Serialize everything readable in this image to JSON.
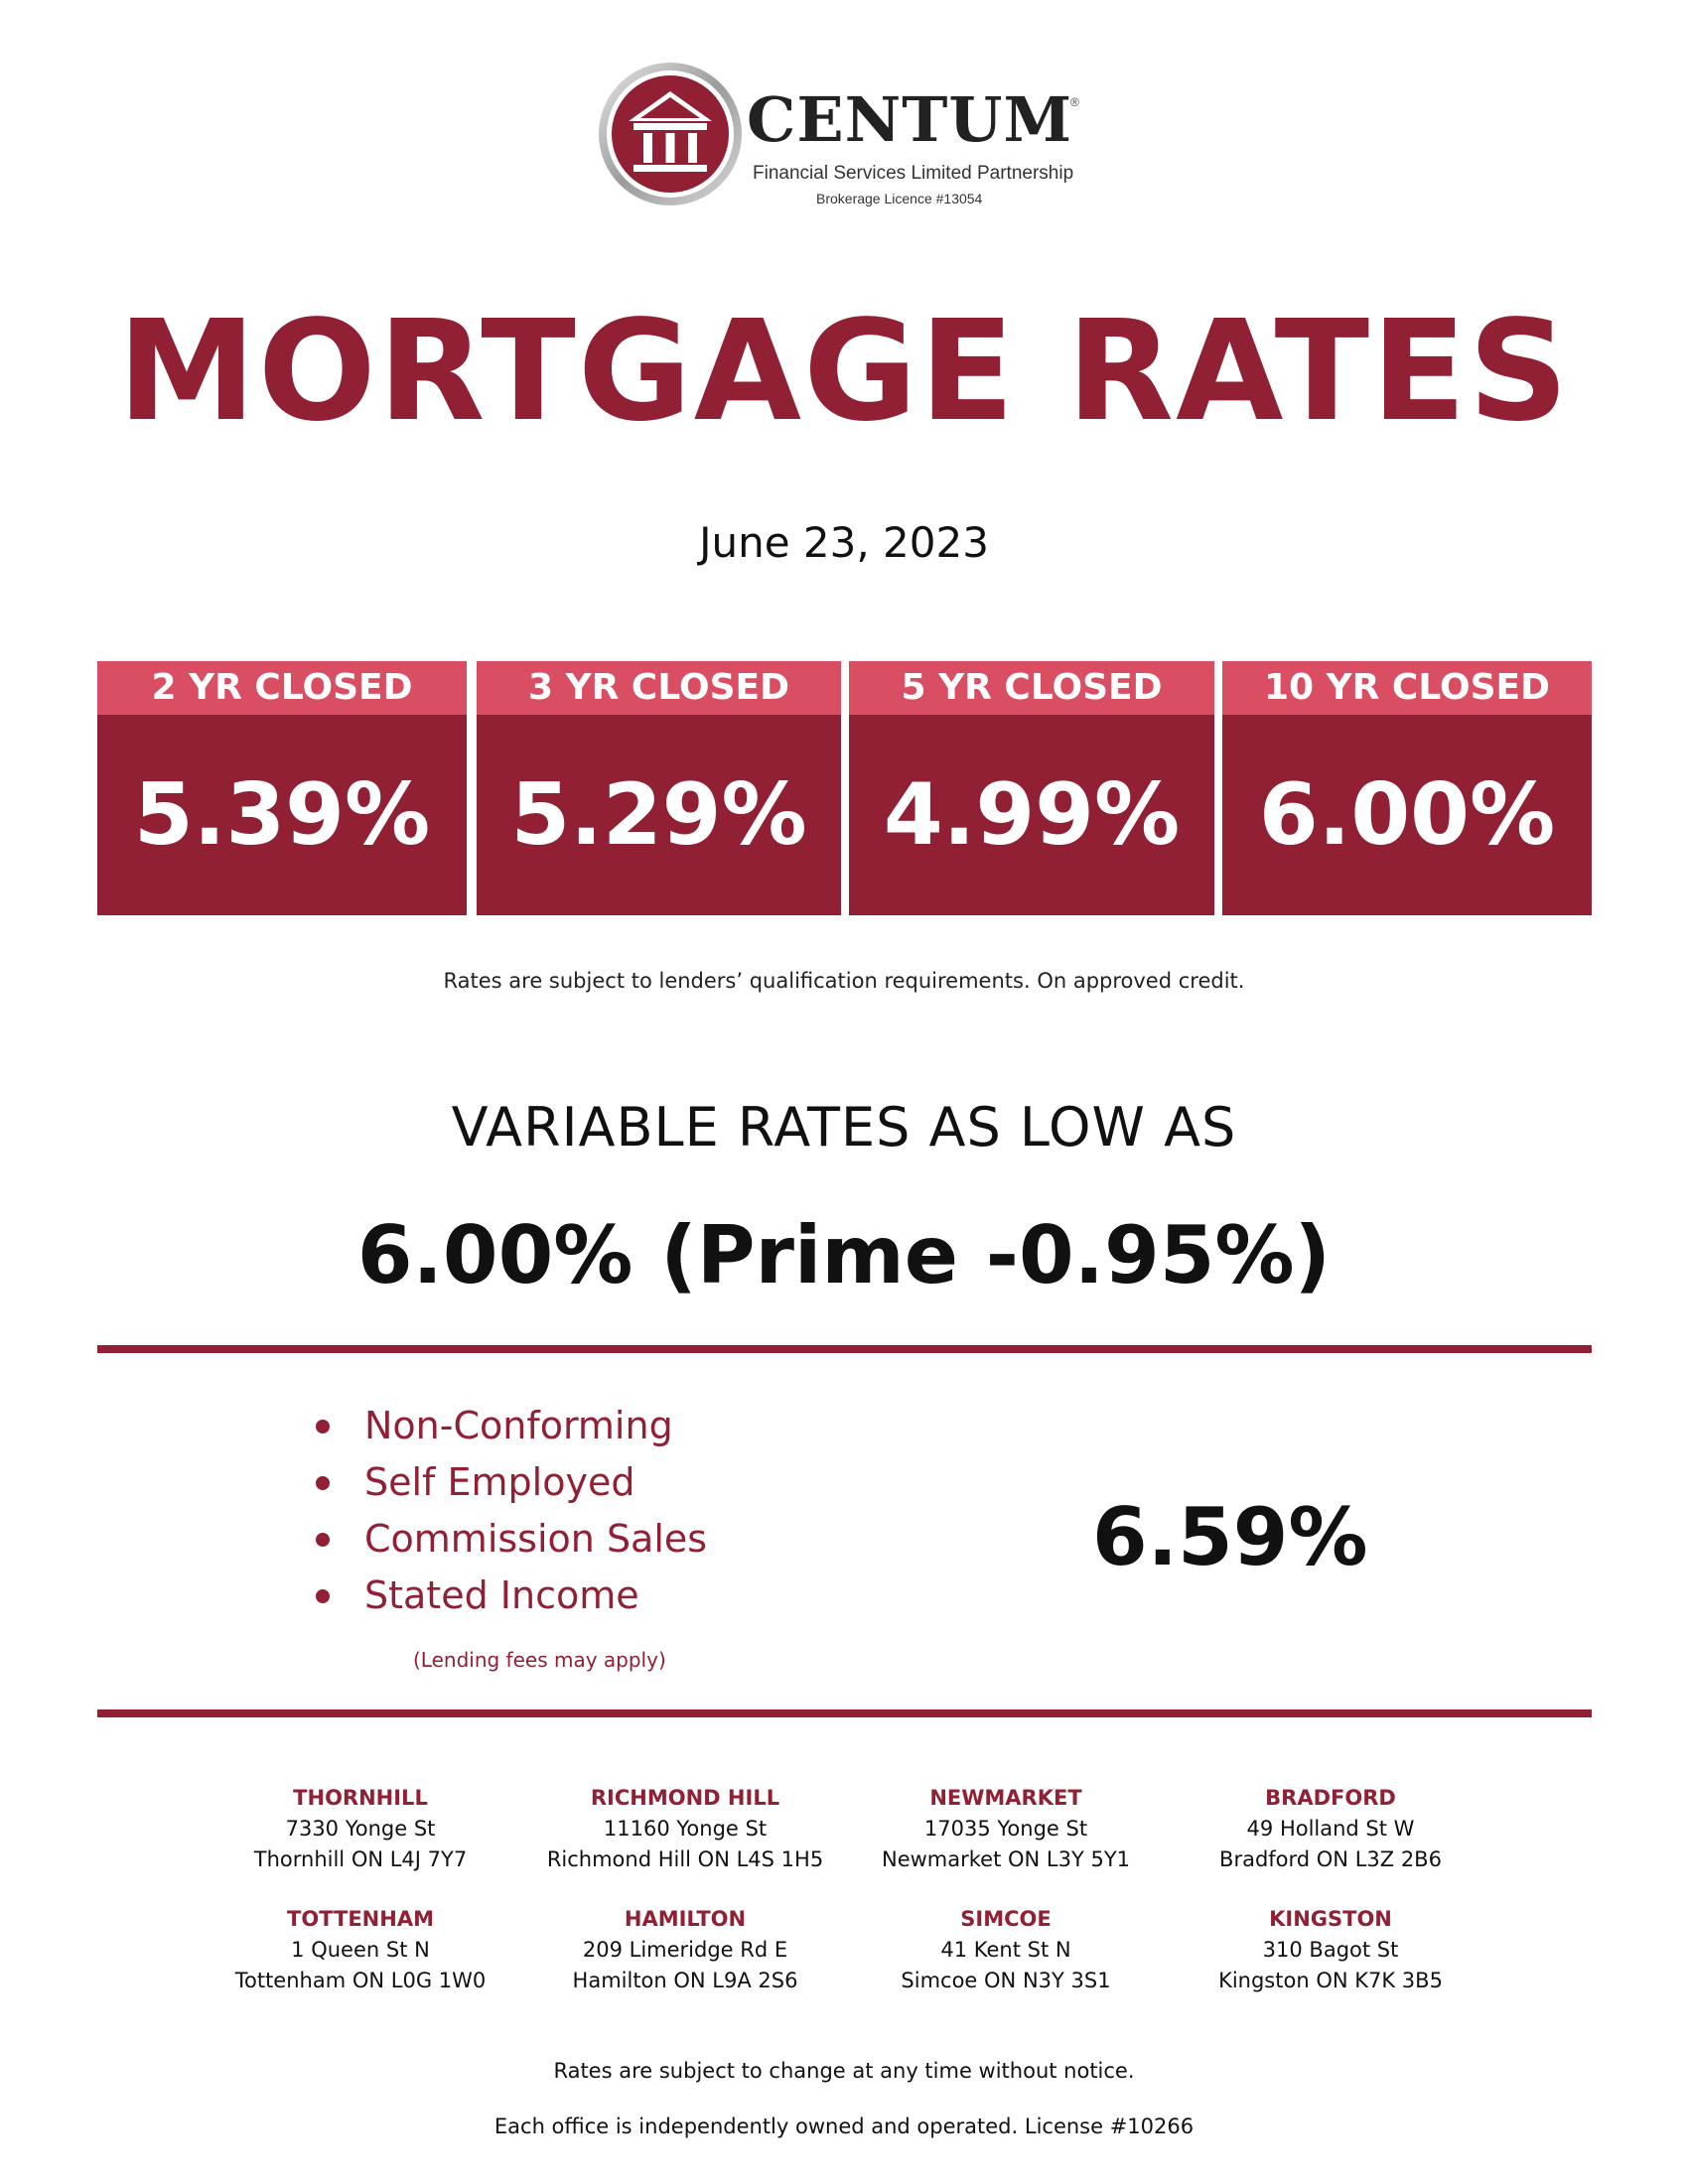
{
  "logo": {
    "brand": "CENTUM",
    "registered": "®",
    "subtitle": "Financial Services Limited Partnership",
    "licence": "Brokerage Licence #13054",
    "colors": {
      "ring": "#b8b8b8",
      "disc": "#922035"
    }
  },
  "title": "MORTGAGE RATES",
  "date": "June 23, 2023",
  "rates": [
    {
      "term": "2 YR CLOSED",
      "rate": "5.39%"
    },
    {
      "term": "3 YR CLOSED",
      "rate": "5.29%"
    },
    {
      "term": "5 YR CLOSED",
      "rate": "4.99%"
    },
    {
      "term": "10 YR CLOSED",
      "rate": "6.00%"
    }
  ],
  "rates_disclaimer": "Rates are subject to lenders’ qualification requirements. On approved credit.",
  "variable": {
    "heading": "VARIABLE RATES AS LOW AS",
    "rate": "6.00% (Prime -0.95%)"
  },
  "non_conforming": {
    "items": [
      "Non-Conforming",
      "Self Employed",
      "Commission Sales",
      "Stated Income"
    ],
    "fees_note": "(Lending fees may apply)",
    "rate": "6.59%"
  },
  "offices": [
    {
      "name": "THORNHILL",
      "street": "7330 Yonge St",
      "city": "Thornhill ON  L4J 7Y7"
    },
    {
      "name": "RICHMOND HILL",
      "street": "11160 Yonge St",
      "city": "Richmond Hill ON  L4S 1H5"
    },
    {
      "name": "NEWMARKET",
      "street": "17035 Yonge St",
      "city": "Newmarket ON  L3Y 5Y1"
    },
    {
      "name": "BRADFORD",
      "street": "49 Holland St W",
      "city": "Bradford ON  L3Z 2B6"
    },
    {
      "name": "TOTTENHAM",
      "street": "1 Queen St N",
      "city": "Tottenham ON  L0G 1W0"
    },
    {
      "name": "HAMILTON",
      "street": "209 Limeridge Rd E",
      "city": "Hamilton ON  L9A 2S6"
    },
    {
      "name": "SIMCOE",
      "street": "41 Kent St N",
      "city": "Simcoe ON  N3Y 3S1"
    },
    {
      "name": "KINGSTON",
      "street": "310 Bagot St",
      "city": "Kingston ON  K7K 3B5"
    }
  ],
  "footer": {
    "change_notice": "Rates are subject to change at any time without notice.",
    "ownership": "Each office is independently owned and operated. License #10266"
  },
  "colors": {
    "brand_red": "#922035",
    "header_pink": "#d94e63"
  }
}
